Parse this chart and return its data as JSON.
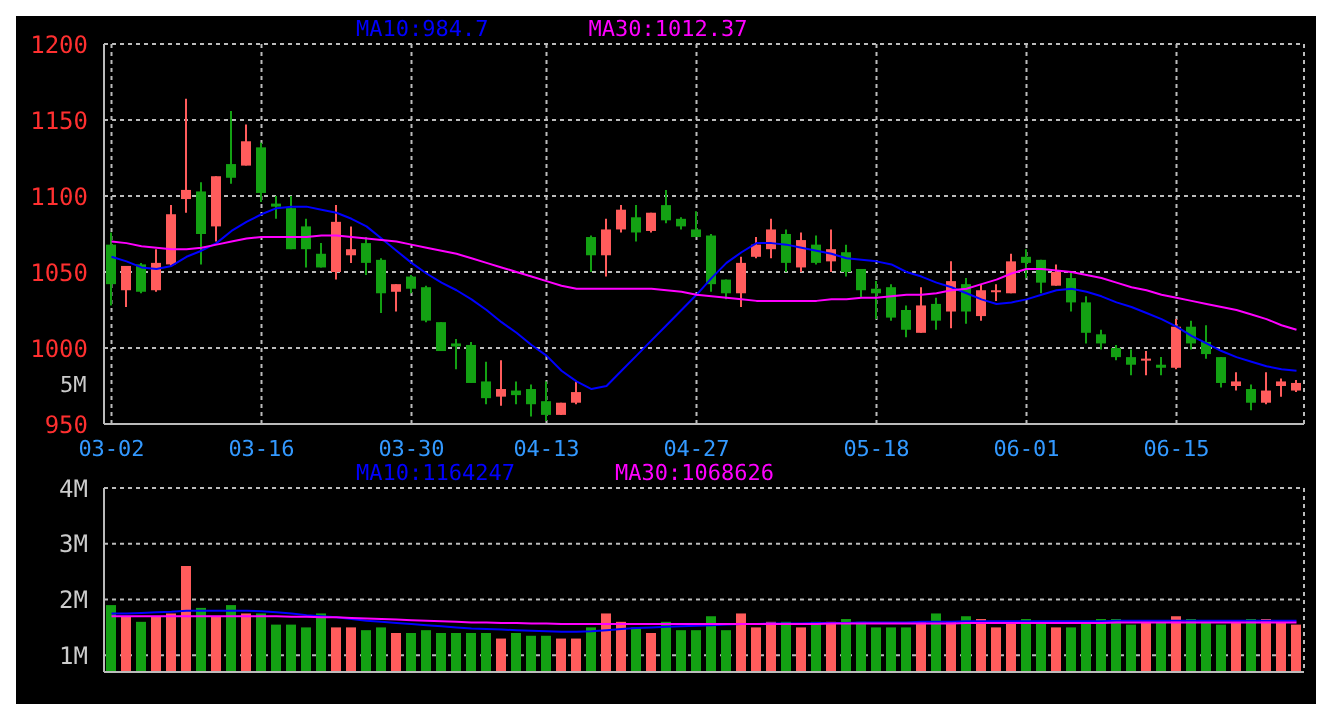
{
  "chart_data": [
    {
      "type": "candlestick",
      "categories": [
        "03-02",
        null,
        null,
        null,
        null,
        null,
        null,
        null,
        null,
        null,
        "03-16",
        null,
        null,
        null,
        null,
        null,
        null,
        null,
        null,
        null,
        "03-30",
        null,
        null,
        null,
        null,
        null,
        null,
        null,
        null,
        "04-13",
        null,
        null,
        null,
        null,
        null,
        null,
        null,
        null,
        null,
        "04-27",
        null,
        null,
        null,
        null,
        null,
        null,
        null,
        null,
        null,
        null,
        null,
        "05-18",
        null,
        null,
        null,
        null,
        null,
        null,
        null,
        null,
        null,
        "06-01",
        null,
        null,
        null,
        null,
        null,
        null,
        null,
        null,
        null,
        "06-15",
        null,
        null,
        null,
        null,
        null,
        null,
        null,
        null
      ],
      "ohlc": [
        [
          1068,
          1076,
          1028,
          1042
        ],
        [
          1038,
          1054,
          1027,
          1054
        ],
        [
          1055,
          1056,
          1036,
          1037
        ],
        [
          1038,
          1065,
          1037,
          1056
        ],
        [
          1055,
          1094,
          1054,
          1088
        ],
        [
          1098,
          1164,
          1089,
          1104
        ],
        [
          1103,
          1109,
          1055,
          1075
        ],
        [
          1080,
          1113,
          1070,
          1113
        ],
        [
          1121,
          1156,
          1108,
          1112
        ],
        [
          1120,
          1147,
          1120,
          1136
        ],
        [
          1132,
          1135,
          1096,
          1102
        ],
        [
          1095,
          1100,
          1085,
          1093
        ],
        [
          1092,
          1100,
          1065,
          1065
        ],
        [
          1080,
          1085,
          1053,
          1065
        ],
        [
          1062,
          1069,
          1053,
          1053
        ],
        [
          1050,
          1094,
          1045,
          1083
        ],
        [
          1061,
          1080,
          1056,
          1065
        ],
        [
          1069,
          1073,
          1048,
          1056
        ],
        [
          1058,
          1059,
          1023,
          1036
        ],
        [
          1037,
          1042,
          1024,
          1042
        ],
        [
          1047,
          1048,
          1036,
          1039
        ],
        [
          1040,
          1041,
          1017,
          1018
        ],
        [
          1017,
          1017,
          998,
          998
        ],
        [
          1003,
          1006,
          986,
          1001
        ],
        [
          1002,
          1004,
          977,
          977
        ],
        [
          978,
          991,
          963,
          967
        ],
        [
          968,
          992,
          962,
          973
        ],
        [
          972,
          978,
          963,
          969
        ],
        [
          973,
          976,
          955,
          963
        ],
        [
          965,
          978,
          952,
          956
        ],
        [
          956,
          964,
          956,
          964
        ],
        [
          964,
          978,
          963,
          971
        ],
        [
          1073,
          1074,
          1050,
          1061
        ],
        [
          1061,
          1085,
          1047,
          1078
        ],
        [
          1078,
          1094,
          1076,
          1091
        ],
        [
          1086,
          1094,
          1070,
          1076
        ],
        [
          1077,
          1089,
          1076,
          1089
        ],
        [
          1094,
          1104,
          1082,
          1084
        ],
        [
          1085,
          1086,
          1078,
          1080
        ],
        [
          1078,
          1090,
          1073,
          1073
        ],
        [
          1074,
          1075,
          1037,
          1042
        ],
        [
          1045,
          1045,
          1032,
          1036
        ],
        [
          1036,
          1060,
          1027,
          1056
        ],
        [
          1060,
          1073,
          1059,
          1068
        ],
        [
          1065,
          1085,
          1059,
          1078
        ],
        [
          1075,
          1078,
          1050,
          1056
        ],
        [
          1053,
          1076,
          1050,
          1071
        ],
        [
          1068,
          1074,
          1055,
          1056
        ],
        [
          1057,
          1078,
          1050,
          1065
        ],
        [
          1063,
          1068,
          1047,
          1050
        ],
        [
          1052,
          1052,
          1033,
          1038
        ],
        [
          1039,
          1044,
          1019,
          1036
        ],
        [
          1040,
          1042,
          1018,
          1020
        ],
        [
          1025,
          1028,
          1007,
          1012
        ],
        [
          1010,
          1040,
          1010,
          1028
        ],
        [
          1029,
          1033,
          1012,
          1018
        ],
        [
          1024,
          1057,
          1013,
          1044
        ],
        [
          1042,
          1046,
          1016,
          1024
        ],
        [
          1021,
          1042,
          1018,
          1038
        ],
        [
          1037,
          1042,
          1031,
          1038
        ],
        [
          1036,
          1062,
          1036,
          1057
        ],
        [
          1060,
          1065,
          1046,
          1056
        ],
        [
          1058,
          1058,
          1036,
          1043
        ],
        [
          1041,
          1055,
          1041,
          1050
        ],
        [
          1046,
          1050,
          1024,
          1030
        ],
        [
          1030,
          1034,
          1003,
          1010
        ],
        [
          1009,
          1012,
          999,
          1003
        ],
        [
          1000,
          1002,
          992,
          994
        ],
        [
          994,
          999,
          982,
          989
        ],
        [
          992,
          998,
          982,
          993
        ],
        [
          989,
          994,
          982,
          987
        ],
        [
          987,
          1019,
          986,
          1014
        ],
        [
          1014,
          1018,
          999,
          1003
        ],
        [
          1004,
          1015,
          993,
          996
        ],
        [
          994,
          994,
          974,
          977
        ],
        [
          975,
          984,
          972,
          978
        ],
        [
          973,
          976,
          959,
          964
        ],
        [
          964,
          984,
          963,
          972
        ],
        [
          975,
          980,
          968,
          978
        ],
        [
          972,
          979,
          971,
          977
        ]
      ],
      "colors": [
        "#13a113",
        "#ff5c5c",
        "#13a113",
        "#ff5c5c",
        "#ff5c5c",
        "#ff5c5c",
        "#13a113",
        "#ff5c5c",
        "#13a113",
        "#ff5c5c",
        "#13a113",
        "#13a113",
        "#13a113",
        "#13a113",
        "#13a113",
        "#ff5c5c",
        "#ff5c5c",
        "#13a113",
        "#13a113",
        "#ff5c5c",
        "#13a113",
        "#13a113",
        "#13a113",
        "#13a113",
        "#13a113",
        "#13a113",
        "#ff5c5c",
        "#13a113",
        "#13a113",
        "#13a113",
        "#ff5c5c",
        "#ff5c5c",
        "#13a113",
        "#ff5c5c",
        "#ff5c5c",
        "#13a113",
        "#ff5c5c",
        "#13a113",
        "#13a113",
        "#13a113",
        "#13a113",
        "#13a113",
        "#ff5c5c",
        "#ff5c5c",
        "#ff5c5c",
        "#13a113",
        "#ff5c5c",
        "#13a113",
        "#ff5c5c",
        "#13a113",
        "#13a113",
        "#13a113",
        "#13a113",
        "#13a113",
        "#ff5c5c",
        "#13a113",
        "#ff5c5c",
        "#13a113",
        "#ff5c5c",
        "#ff5c5c",
        "#ff5c5c",
        "#13a113",
        "#13a113",
        "#ff5c5c",
        "#13a113",
        "#13a113",
        "#13a113",
        "#13a113",
        "#13a113",
        "#ff5c5c",
        "#13a113",
        "#ff5c5c",
        "#13a113",
        "#13a113",
        "#13a113",
        "#ff5c5c",
        "#13a113",
        "#ff5c5c",
        "#ff5c5c",
        "#ff5c5c"
      ],
      "series": [
        {
          "name": "MA10:984.7",
          "type": "line",
          "color": "#0000ff",
          "values": [
            1060,
            1057,
            1053,
            1052,
            1054,
            1060,
            1064,
            1069,
            1077,
            1083,
            1088,
            1092,
            1093,
            1093,
            1091,
            1089,
            1085,
            1080,
            1072,
            1064,
            1056,
            1049,
            1043,
            1038,
            1032,
            1025,
            1017,
            1010,
            1002,
            995,
            985,
            978,
            973,
            975,
            985,
            995,
            1005,
            1015,
            1025,
            1035,
            1046,
            1056,
            1063,
            1069,
            1069,
            1068,
            1066,
            1064,
            1062,
            1059,
            1058,
            1057,
            1055,
            1050,
            1047,
            1043,
            1040,
            1036,
            1032,
            1029,
            1030,
            1032,
            1035,
            1038,
            1039,
            1037,
            1034,
            1030,
            1027,
            1023,
            1019,
            1014,
            1008,
            1003,
            998,
            994,
            991,
            988,
            986,
            985
          ]
        },
        {
          "name": "MA30:1012.37",
          "type": "line",
          "color": "#ff00ff",
          "values": [
            1070,
            1069,
            1067,
            1066,
            1065,
            1065,
            1066,
            1068,
            1070,
            1072,
            1073,
            1073,
            1073,
            1073,
            1074,
            1074,
            1073,
            1072,
            1071,
            1070,
            1068,
            1066,
            1064,
            1062,
            1059,
            1056,
            1053,
            1050,
            1047,
            1044,
            1041,
            1039,
            1039,
            1039,
            1039,
            1039,
            1039,
            1038,
            1037,
            1035,
            1034,
            1033,
            1032,
            1031,
            1031,
            1031,
            1031,
            1031,
            1032,
            1032,
            1033,
            1033,
            1034,
            1035,
            1035,
            1036,
            1038,
            1039,
            1042,
            1045,
            1049,
            1052,
            1052,
            1051,
            1050,
            1048,
            1046,
            1043,
            1040,
            1038,
            1035,
            1033,
            1031,
            1029,
            1027,
            1025,
            1022,
            1019,
            1015,
            1012
          ]
        }
      ],
      "ylim": [
        950,
        1200
      ],
      "yticks": [
        950,
        1000,
        1050,
        1100,
        1150,
        1200
      ],
      "grid": true,
      "legend": "top",
      "annotations": [
        "5M"
      ]
    },
    {
      "type": "bar",
      "categories": [
        null,
        null,
        null,
        null,
        null,
        null,
        null,
        null,
        null,
        null,
        null,
        null,
        null,
        null,
        null,
        null,
        null,
        null,
        null,
        null,
        null,
        null,
        null,
        null,
        null,
        null,
        null,
        null,
        null,
        null,
        null,
        null,
        null,
        null,
        null,
        null,
        null,
        null,
        null,
        null,
        null,
        null,
        null,
        null,
        null,
        null,
        null,
        null,
        null,
        null,
        null,
        null,
        null,
        null,
        null,
        null,
        null,
        null,
        null,
        null,
        null,
        null,
        null,
        null,
        null,
        null,
        null,
        null,
        null,
        null,
        null,
        null,
        null,
        null,
        null,
        null,
        null,
        null,
        null,
        null
      ],
      "series": [
        {
          "type": "bar",
          "values": [
            1900000,
            1700000,
            1600000,
            1700000,
            1750000,
            2600000,
            1850000,
            1700000,
            1900000,
            1750000,
            1750000,
            1550000,
            1550000,
            1500000,
            1750000,
            1500000,
            1500000,
            1450000,
            1500000,
            1400000,
            1400000,
            1450000,
            1400000,
            1400000,
            1400000,
            1400000,
            1300000,
            1400000,
            1350000,
            1350000,
            1300000,
            1300000,
            1500000,
            1750000,
            1600000,
            1500000,
            1400000,
            1600000,
            1450000,
            1450000,
            1700000,
            1450000,
            1750000,
            1500000,
            1600000,
            1600000,
            1500000,
            1600000,
            1600000,
            1650000,
            1600000,
            1500000,
            1500000,
            1500000,
            1600000,
            1750000,
            1600000,
            1700000,
            1650000,
            1500000,
            1600000,
            1650000,
            1600000,
            1500000,
            1500000,
            1600000,
            1650000,
            1650000,
            1550000,
            1600000,
            1600000,
            1700000,
            1650000,
            1600000,
            1550000,
            1600000,
            1650000,
            1650000,
            1600000,
            1550000
          ],
          "colors": [
            "#13a113",
            "#ff5c5c",
            "#13a113",
            "#ff5c5c",
            "#ff5c5c",
            "#ff5c5c",
            "#13a113",
            "#ff5c5c",
            "#13a113",
            "#ff5c5c",
            "#13a113",
            "#13a113",
            "#13a113",
            "#13a113",
            "#13a113",
            "#ff5c5c",
            "#ff5c5c",
            "#13a113",
            "#13a113",
            "#ff5c5c",
            "#13a113",
            "#13a113",
            "#13a113",
            "#13a113",
            "#13a113",
            "#13a113",
            "#ff5c5c",
            "#13a113",
            "#13a113",
            "#13a113",
            "#ff5c5c",
            "#ff5c5c",
            "#13a113",
            "#ff5c5c",
            "#ff5c5c",
            "#13a113",
            "#ff5c5c",
            "#13a113",
            "#13a113",
            "#13a113",
            "#13a113",
            "#13a113",
            "#ff5c5c",
            "#ff5c5c",
            "#ff5c5c",
            "#13a113",
            "#ff5c5c",
            "#13a113",
            "#ff5c5c",
            "#13a113",
            "#13a113",
            "#13a113",
            "#13a113",
            "#13a113",
            "#ff5c5c",
            "#13a113",
            "#ff5c5c",
            "#13a113",
            "#ff5c5c",
            "#ff5c5c",
            "#ff5c5c",
            "#13a113",
            "#13a113",
            "#ff5c5c",
            "#13a113",
            "#13a113",
            "#13a113",
            "#13a113",
            "#13a113",
            "#ff5c5c",
            "#13a113",
            "#ff5c5c",
            "#13a113",
            "#13a113",
            "#13a113",
            "#ff5c5c",
            "#13a113",
            "#ff5c5c",
            "#ff5c5c",
            "#ff5c5c"
          ]
        },
        {
          "name": "MA10:1164247",
          "type": "line",
          "color": "#0000ff",
          "values": [
            1750000,
            1750000,
            1760000,
            1770000,
            1780000,
            1800000,
            1800000,
            1800000,
            1800000,
            1800000,
            1790000,
            1770000,
            1750000,
            1720000,
            1700000,
            1680000,
            1650000,
            1620000,
            1600000,
            1580000,
            1560000,
            1540000,
            1520000,
            1500000,
            1480000,
            1470000,
            1460000,
            1450000,
            1440000,
            1430000,
            1420000,
            1420000,
            1430000,
            1450000,
            1470000,
            1490000,
            1500000,
            1510000,
            1520000,
            1530000,
            1540000,
            1550000,
            1560000,
            1560000,
            1570000,
            1570000,
            1570000,
            1580000,
            1580000,
            1580000,
            1590000,
            1590000,
            1590000,
            1590000,
            1600000,
            1600000,
            1600000,
            1610000,
            1610000,
            1610000,
            1610000,
            1610000,
            1610000,
            1610000,
            1610000,
            1610000,
            1610000,
            1620000,
            1620000,
            1620000,
            1620000,
            1620000,
            1620000,
            1620000,
            1620000,
            1620000,
            1620000,
            1620000,
            1620000,
            1620000
          ]
        },
        {
          "name": "MA30:1068626",
          "type": "line",
          "color": "#ff00ff",
          "values": [
            1700000,
            1700000,
            1700000,
            1700000,
            1700000,
            1700000,
            1700000,
            1700000,
            1700000,
            1700000,
            1700000,
            1700000,
            1690000,
            1690000,
            1680000,
            1680000,
            1670000,
            1660000,
            1650000,
            1640000,
            1630000,
            1620000,
            1610000,
            1600000,
            1590000,
            1590000,
            1580000,
            1580000,
            1570000,
            1570000,
            1560000,
            1560000,
            1560000,
            1560000,
            1560000,
            1560000,
            1560000,
            1560000,
            1560000,
            1560000,
            1560000,
            1560000,
            1560000,
            1560000,
            1560000,
            1560000,
            1560000,
            1560000,
            1570000,
            1570000,
            1570000,
            1570000,
            1570000,
            1570000,
            1570000,
            1570000,
            1570000,
            1580000,
            1580000,
            1580000,
            1580000,
            1580000,
            1580000,
            1580000,
            1580000,
            1580000,
            1580000,
            1590000,
            1590000,
            1590000,
            1590000,
            1590000,
            1590000,
            1590000,
            1590000,
            1590000,
            1590000,
            1590000,
            1590000,
            1590000
          ]
        }
      ],
      "ylim": [
        700000,
        4000000
      ],
      "yticks": [
        {
          "value": 1000000,
          "label": "1M"
        },
        {
          "value": 2000000,
          "label": "2M"
        },
        {
          "value": 3000000,
          "label": "3M"
        },
        {
          "value": 4000000,
          "label": "4M"
        }
      ],
      "grid": true,
      "legend": "top",
      "tick_labels": "y"
    }
  ]
}
